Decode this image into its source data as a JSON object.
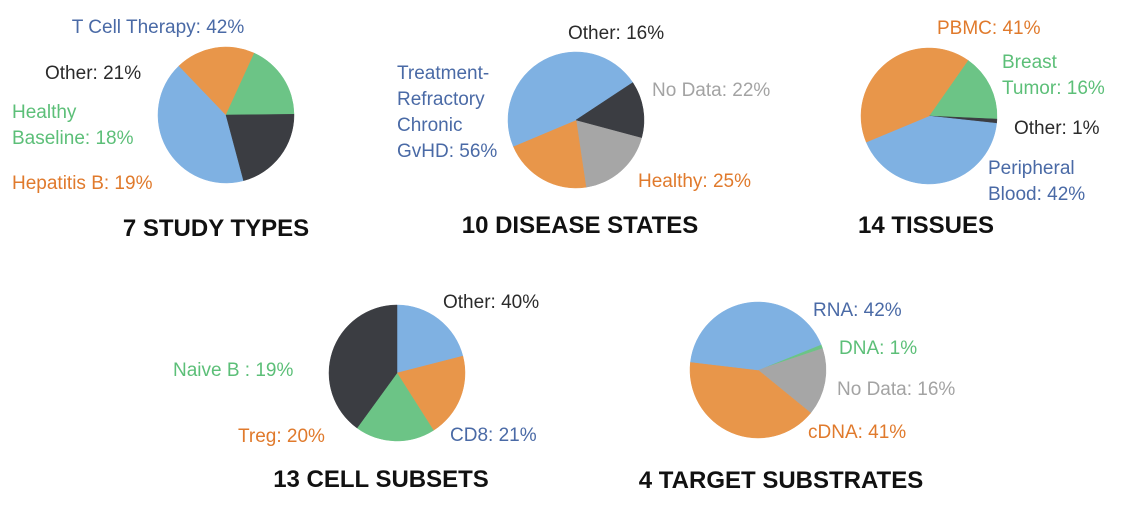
{
  "colors": {
    "blue": "#7fb1e2",
    "orange": "#e8964a",
    "green": "#6cc486",
    "dark": "#3b3d42",
    "gray": "#a6a6a6",
    "text_blue": "#4a6aa6",
    "text_orange": "#e07a2c",
    "text_green": "#5cbf78",
    "text_dark": "#2b2b2b",
    "text_gray": "#a3a3a3"
  },
  "chart_data": [
    {
      "type": "pie",
      "title": "7 STUDY TYPES",
      "slices": [
        {
          "label": "T Cell Therapy: 42%",
          "value": 42,
          "color": "blue",
          "text_color": "text_blue"
        },
        {
          "label": "Hepatitis B: 19%",
          "value": 19,
          "color": "orange",
          "text_color": "text_orange"
        },
        {
          "label": "Healthy Baseline: 18%",
          "value": 18,
          "color": "green",
          "text_color": "text_green"
        },
        {
          "label": "Other: 21%",
          "value": 21,
          "color": "dark",
          "text_color": "text_dark"
        }
      ]
    },
    {
      "type": "pie",
      "title": "10 DISEASE STATES",
      "slices": [
        {
          "label": "No Data: 22%",
          "value": 22,
          "color": "gray",
          "text_color": "text_gray"
        },
        {
          "label": "Healthy: 25%",
          "value": 25,
          "color": "orange",
          "text_color": "text_orange"
        },
        {
          "label": "Treatment-Refractory Chronic GvHD: 56%",
          "value": 56,
          "color": "blue",
          "text_color": "text_blue"
        },
        {
          "label": "Other: 16%",
          "value": 16,
          "color": "dark",
          "text_color": "text_dark"
        }
      ]
    },
    {
      "type": "pie",
      "title": "14 TISSUES",
      "slices": [
        {
          "label": "Breast Tumor: 16%",
          "value": 16,
          "color": "green",
          "text_color": "text_green"
        },
        {
          "label": "Other: 1%",
          "value": 1,
          "color": "dark",
          "text_color": "text_dark"
        },
        {
          "label": "Peripheral Blood: 42%",
          "value": 42,
          "color": "blue",
          "text_color": "text_blue"
        },
        {
          "label": "PBMC: 41%",
          "value": 41,
          "color": "orange",
          "text_color": "text_orange"
        }
      ]
    },
    {
      "type": "pie",
      "title": "13 CELL SUBSETS",
      "slices": [
        {
          "label": "CD8: 21%",
          "value": 21,
          "color": "blue",
          "text_color": "text_blue"
        },
        {
          "label": "Treg: 20%",
          "value": 20,
          "color": "orange",
          "text_color": "text_orange"
        },
        {
          "label": "Naive B : 19%",
          "value": 19,
          "color": "green",
          "text_color": "text_green"
        },
        {
          "label": "Other: 40%",
          "value": 40,
          "color": "dark",
          "text_color": "text_dark"
        }
      ]
    },
    {
      "type": "pie",
      "title": "4 TARGET SUBSTRATES",
      "slices": [
        {
          "label": "DNA: 1%",
          "value": 1,
          "color": "green",
          "text_color": "text_green"
        },
        {
          "label": "No Data: 16%",
          "value": 16,
          "color": "gray",
          "text_color": "text_gray"
        },
        {
          "label": "cDNA: 41%",
          "value": 41,
          "color": "orange",
          "text_color": "text_orange"
        },
        {
          "label": "RNA: 42%",
          "value": 42,
          "color": "blue",
          "text_color": "text_blue"
        }
      ]
    }
  ]
}
